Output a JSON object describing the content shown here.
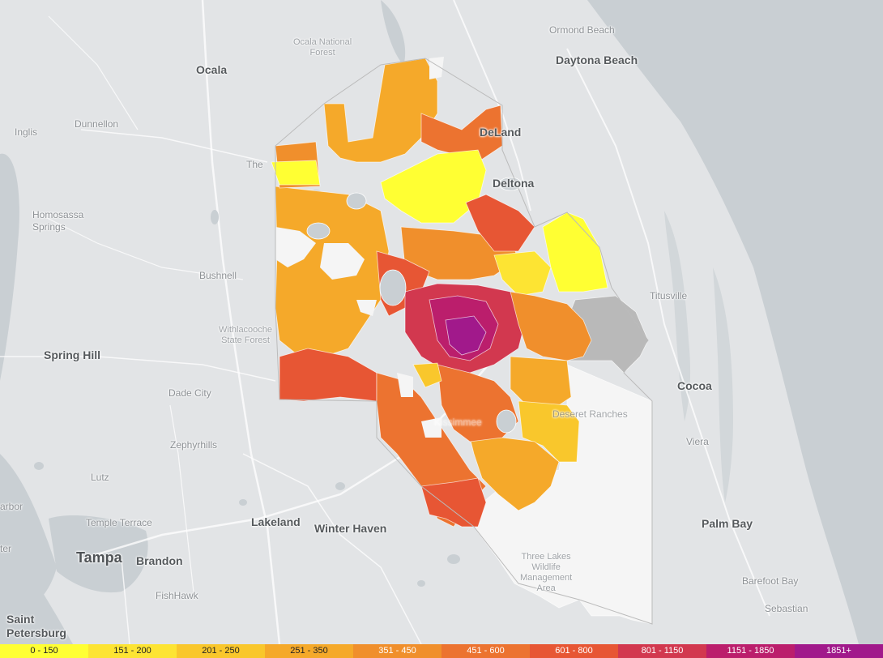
{
  "map": {
    "colors": {
      "water": "#c9cfd3",
      "land": "#e2e4e6",
      "no_data_zone": "#f5f5f5",
      "gray_zone": "#b9b9b9"
    },
    "places": {
      "ormond_beach": "Ormond Beach",
      "daytona_beach": "Daytona Beach",
      "ocala": "Ocala",
      "ocala_forest": "Ocala National\nForest",
      "inglis": "Inglis",
      "dunnellon": "Dunnellon",
      "deland": "DeLand",
      "deltona": "Deltona",
      "the": "The",
      "homosassa": "Homosassa\nSprings",
      "bushnell": "Bushnell",
      "titusville": "Titusville",
      "withlacoochee": "Withlacooche\nState Forest",
      "spring_hill": "Spring Hill",
      "dade_city": "Dade City",
      "cocoa": "Cocoa",
      "deseret": "Deseret Ranches",
      "kissimmee": "Kissimmee",
      "viera": "Viera",
      "zephyrhills": "Zephyrhills",
      "lutz": "Lutz",
      "arbor": "arbor",
      "temple_terrace": "Temple Terrace",
      "lakeland": "Lakeland",
      "winter_haven": "Winter Haven",
      "palm_bay": "Palm Bay",
      "ter": "ter",
      "tampa": "Tampa",
      "brandon": "Brandon",
      "three_lakes": "Three Lakes\nWildlife\nManagement\nArea",
      "barefoot_bay": "Barefoot Bay",
      "fishhawk": "FishHawk",
      "sebastian": "Sebastian",
      "saint_petersburg": "Saint\nPetersburg"
    }
  },
  "legend": {
    "items": [
      {
        "label": "0 - 150",
        "color": "#ffff33",
        "text_color": "#222222"
      },
      {
        "label": "151 - 200",
        "color": "#fde433",
        "text_color": "#222222"
      },
      {
        "label": "201 - 250",
        "color": "#f9c72c",
        "text_color": "#222222"
      },
      {
        "label": "251 - 350",
        "color": "#f5a92a",
        "text_color": "#222222"
      },
      {
        "label": "351 - 450",
        "color": "#f08f2c",
        "text_color": "#ffffff"
      },
      {
        "label": "451 - 600",
        "color": "#ec7330",
        "text_color": "#ffffff"
      },
      {
        "label": "601 - 800",
        "color": "#e75634",
        "text_color": "#ffffff"
      },
      {
        "label": "801 - 1150",
        "color": "#d2384f",
        "text_color": "#ffffff"
      },
      {
        "label": "1151 - 1850",
        "color": "#bb1e6c",
        "text_color": "#ffffff"
      },
      {
        "label": "1851+",
        "color": "#a1198b",
        "text_color": "#ffffff"
      }
    ]
  }
}
